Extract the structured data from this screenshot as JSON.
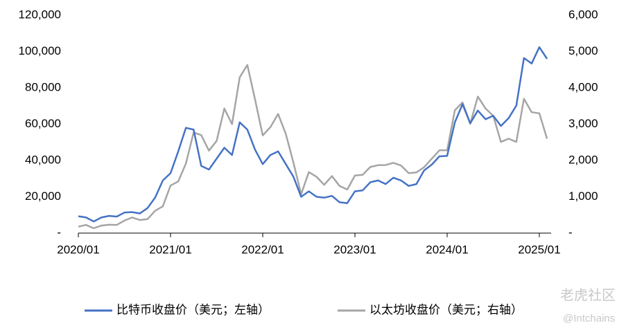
{
  "chart_data": {
    "type": "line",
    "x": [
      "2020/01",
      "2020/02",
      "2020/03",
      "2020/04",
      "2020/05",
      "2020/06",
      "2020/07",
      "2020/08",
      "2020/09",
      "2020/10",
      "2020/11",
      "2020/12",
      "2021/01",
      "2021/02",
      "2021/03",
      "2021/04",
      "2021/05",
      "2021/06",
      "2021/07",
      "2021/08",
      "2021/09",
      "2021/10",
      "2021/11",
      "2021/12",
      "2022/01",
      "2022/02",
      "2022/03",
      "2022/04",
      "2022/05",
      "2022/06",
      "2022/07",
      "2022/08",
      "2022/09",
      "2022/10",
      "2022/11",
      "2022/12",
      "2023/01",
      "2023/02",
      "2023/03",
      "2023/04",
      "2023/05",
      "2023/06",
      "2023/07",
      "2023/08",
      "2023/09",
      "2023/10",
      "2023/11",
      "2023/12",
      "2024/01",
      "2024/02",
      "2024/03",
      "2024/04",
      "2024/05",
      "2024/06",
      "2024/07",
      "2024/08",
      "2024/09",
      "2024/10",
      "2024/11",
      "2024/12",
      "2025/01",
      "2025/02"
    ],
    "series": [
      {
        "name": "比特币收盘价（美元；左轴）",
        "color": "#4472c4",
        "axis": "y",
        "values": [
          9300,
          8600,
          6400,
          8600,
          9500,
          9100,
          11300,
          11600,
          10800,
          13800,
          19600,
          29000,
          33000,
          45000,
          58000,
          57000,
          37000,
          35000,
          41000,
          47000,
          43000,
          61000,
          57000,
          46000,
          38000,
          43000,
          45000,
          38000,
          31000,
          20000,
          23000,
          20000,
          19500,
          20500,
          17000,
          16500,
          23000,
          23500,
          28000,
          29000,
          27000,
          30500,
          29000,
          26000,
          27000,
          34500,
          37700,
          42300,
          42500,
          61000,
          71000,
          60500,
          67500,
          62700,
          64600,
          59000,
          63300,
          70200,
          96400,
          93400,
          102400,
          96000
        ]
      },
      {
        "name": "以太坊收盘价（美元；右轴）",
        "color": "#a5a5a5",
        "axis": "y2",
        "values": [
          180,
          225,
          133,
          207,
          230,
          225,
          345,
          430,
          360,
          385,
          615,
          737,
          1310,
          1420,
          1920,
          2770,
          2700,
          2270,
          2540,
          3430,
          3000,
          4290,
          4630,
          3680,
          2690,
          2920,
          3280,
          2730,
          1940,
          1070,
          1680,
          1550,
          1330,
          1570,
          1300,
          1200,
          1585,
          1605,
          1820,
          1870,
          1875,
          1935,
          1860,
          1650,
          1670,
          1815,
          2050,
          2280,
          2280,
          3380,
          3600,
          3010,
          3760,
          3430,
          3230,
          2510,
          2600,
          2510,
          3700,
          3330,
          3300,
          2600
        ]
      }
    ],
    "xticks": [
      "2020/01",
      "2021/01",
      "2022/01",
      "2023/01",
      "2024/01",
      "2025/01"
    ],
    "ylim": [
      0,
      120000
    ],
    "yticks": [
      {
        "value": 0,
        "label": "-"
      },
      {
        "value": 20000,
        "label": "20,000"
      },
      {
        "value": 40000,
        "label": "40,000"
      },
      {
        "value": 60000,
        "label": "60,000"
      },
      {
        "value": 80000,
        "label": "80,000"
      },
      {
        "value": 100000,
        "label": "100,000"
      },
      {
        "value": 120000,
        "label": "120,000"
      }
    ],
    "y2lim": [
      0,
      6000
    ],
    "y2ticks": [
      {
        "value": 0,
        "label": "-"
      },
      {
        "value": 1000,
        "label": "1,000"
      },
      {
        "value": 2000,
        "label": "2,000"
      },
      {
        "value": 3000,
        "label": "3,000"
      },
      {
        "value": 4000,
        "label": "4,000"
      },
      {
        "value": 5000,
        "label": "5,000"
      },
      {
        "value": 6000,
        "label": "6,000"
      }
    ],
    "grid": false,
    "watermark": [
      "老虎社区",
      "@Intchains"
    ]
  }
}
